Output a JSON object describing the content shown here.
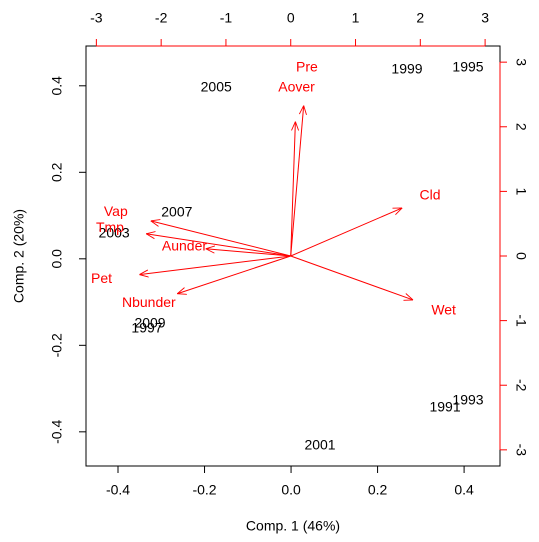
{
  "chart_data": {
    "type": "biplot",
    "xlabel": "Comp. 1 (46%)",
    "ylabel": "Comp. 2 (20%)",
    "xlim": [
      -0.474,
      0.483
    ],
    "ylim": [
      -0.479,
      0.492
    ],
    "xticks": [
      -0.4,
      -0.2,
      {
        "value": 0,
        "label": "0.0"
      },
      0.2,
      0.4
    ],
    "yticks": [
      -0.4,
      -0.2,
      {
        "value": 0,
        "label": "0.0"
      },
      0.2,
      0.4
    ],
    "x2lim": [
      -3.16,
      3.23
    ],
    "y2lim": [
      -3.25,
      3.25
    ],
    "x2ticks": [
      -3,
      -2,
      -1,
      0,
      1,
      2,
      3
    ],
    "y2ticks": [
      -3,
      -2,
      -1,
      0,
      1,
      2,
      3
    ],
    "points": {
      "color": "#000000",
      "labels": [
        "1995",
        "1999",
        "2005",
        "2007",
        "2003",
        "2009",
        "1997",
        "2001",
        "1993",
        "1991"
      ],
      "x": [
        0.409,
        0.268,
        -0.173,
        -0.264,
        -0.409,
        -0.326,
        -0.333,
        0.067,
        0.409,
        0.356
      ],
      "y": [
        0.442,
        0.437,
        0.395,
        0.106,
        0.058,
        -0.15,
        -0.162,
        -0.432,
        -0.328,
        -0.345
      ]
    },
    "loadings": {
      "color": "#ff0000",
      "labels": [
        "Pre",
        "Aover",
        "Cld",
        "Wet",
        "Vap",
        "Tmp",
        "Aunder",
        "Pet",
        "Nbunder"
      ],
      "x": [
        0.25,
        0.09,
        2.15,
        2.36,
        -2.7,
        -2.79,
        -1.64,
        -2.92,
        -2.19
      ],
      "y": [
        2.91,
        2.6,
        0.93,
        -0.85,
        0.68,
        0.43,
        0.14,
        -0.36,
        -0.73
      ]
    }
  }
}
